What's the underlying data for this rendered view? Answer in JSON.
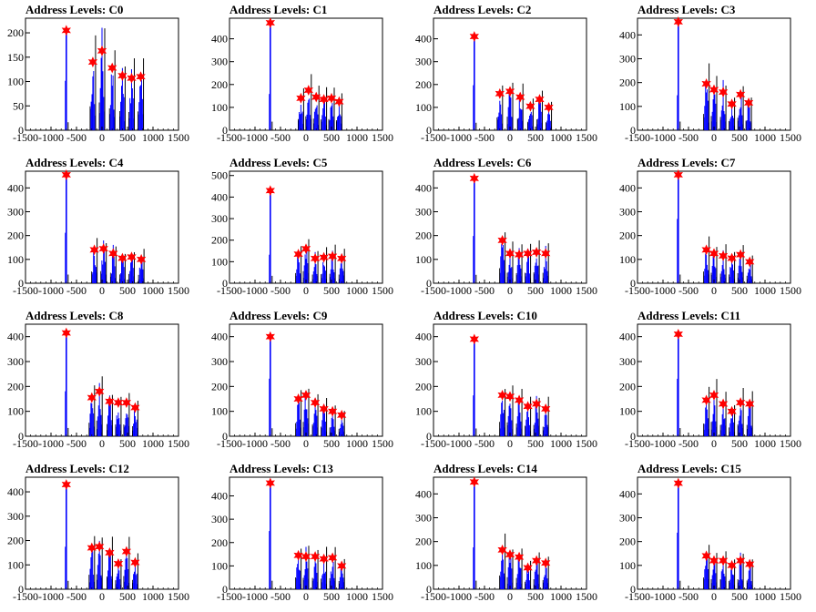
{
  "colors": {
    "histogram": "#0000ff",
    "envelope": "#000000",
    "peak_marker": "#ff0000",
    "axis": "#000000"
  },
  "chart_data": [
    {
      "type": "bar",
      "title": "Address Levels: C0",
      "x_ticks": [
        "-1500",
        "-1000",
        "-500",
        "0",
        "500",
        "1000",
        "1500"
      ],
      "xlim": [
        -1500,
        1500
      ],
      "y_ticks": [
        "0",
        "50",
        "100",
        "150",
        "200"
      ],
      "ylim": [
        0,
        230
      ],
      "peaks": [
        {
          "x": -700,
          "y": 205
        },
        {
          "x": -180,
          "y": 140
        },
        {
          "x": 0,
          "y": 163
        },
        {
          "x": 200,
          "y": 128
        },
        {
          "x": 400,
          "y": 112
        },
        {
          "x": 580,
          "y": 107
        },
        {
          "x": 760,
          "y": 110
        }
      ]
    },
    {
      "type": "bar",
      "title": "Address Levels: C1",
      "x_ticks": [
        "-1500",
        "-1000",
        "-500",
        "0",
        "500",
        "1000",
        "1500"
      ],
      "xlim": [
        -1500,
        1500
      ],
      "y_ticks": [
        "0",
        "100",
        "200",
        "300",
        "400"
      ],
      "ylim": [
        0,
        490
      ],
      "peaks": [
        {
          "x": -700,
          "y": 470
        },
        {
          "x": -100,
          "y": 140
        },
        {
          "x": 50,
          "y": 175
        },
        {
          "x": 200,
          "y": 145
        },
        {
          "x": 350,
          "y": 135
        },
        {
          "x": 500,
          "y": 140
        },
        {
          "x": 650,
          "y": 125
        }
      ]
    },
    {
      "type": "bar",
      "title": "Address Levels: C2",
      "x_ticks": [
        "-1500",
        "-1000",
        "-500",
        "0",
        "500",
        "1000",
        "1500"
      ],
      "xlim": [
        -1500,
        1500
      ],
      "y_ticks": [
        "0",
        "100",
        "200",
        "300",
        "400"
      ],
      "ylim": [
        0,
        490
      ],
      "peaks": [
        {
          "x": -700,
          "y": 410
        },
        {
          "x": -200,
          "y": 160
        },
        {
          "x": 0,
          "y": 170
        },
        {
          "x": 200,
          "y": 145
        },
        {
          "x": 400,
          "y": 105
        },
        {
          "x": 580,
          "y": 135
        },
        {
          "x": 760,
          "y": 100
        }
      ]
    },
    {
      "type": "bar",
      "title": "Address Levels: C3",
      "x_ticks": [
        "-1500",
        "-1000",
        "-500",
        "0",
        "500",
        "1000",
        "1500"
      ],
      "xlim": [
        -1500,
        1500
      ],
      "y_ticks": [
        "0",
        "100",
        "200",
        "300",
        "400"
      ],
      "ylim": [
        0,
        470
      ],
      "peaks": [
        {
          "x": -700,
          "y": 455
        },
        {
          "x": -150,
          "y": 195
        },
        {
          "x": 0,
          "y": 170
        },
        {
          "x": 180,
          "y": 160
        },
        {
          "x": 350,
          "y": 110
        },
        {
          "x": 520,
          "y": 150
        },
        {
          "x": 680,
          "y": 115
        }
      ]
    },
    {
      "type": "bar",
      "title": "Address Levels: C4",
      "x_ticks": [
        "-1500",
        "-1000",
        "-500",
        "0",
        "500",
        "1000",
        "1500"
      ],
      "xlim": [
        -1500,
        1500
      ],
      "y_ticks": [
        "0",
        "100",
        "200",
        "300",
        "400"
      ],
      "ylim": [
        0,
        470
      ],
      "peaks": [
        {
          "x": -700,
          "y": 455
        },
        {
          "x": -150,
          "y": 140
        },
        {
          "x": 30,
          "y": 145
        },
        {
          "x": 220,
          "y": 125
        },
        {
          "x": 400,
          "y": 105
        },
        {
          "x": 580,
          "y": 110
        },
        {
          "x": 770,
          "y": 100
        }
      ]
    },
    {
      "type": "bar",
      "title": "Address Levels: C5",
      "x_ticks": [
        "-1500",
        "-1000",
        "-500",
        "0",
        "500",
        "1000",
        "1500"
      ],
      "xlim": [
        -1500,
        1500
      ],
      "y_ticks": [
        "0",
        "100",
        "200",
        "300",
        "400",
        "500"
      ],
      "ylim": [
        0,
        520
      ],
      "peaks": [
        {
          "x": -700,
          "y": 430
        },
        {
          "x": -150,
          "y": 135
        },
        {
          "x": 0,
          "y": 160
        },
        {
          "x": 180,
          "y": 115
        },
        {
          "x": 350,
          "y": 120
        },
        {
          "x": 520,
          "y": 125
        },
        {
          "x": 700,
          "y": 115
        }
      ]
    },
    {
      "type": "bar",
      "title": "Address Levels: C6",
      "x_ticks": [
        "-1500",
        "-1000",
        "-500",
        "0",
        "500",
        "1000",
        "1500"
      ],
      "xlim": [
        -1500,
        1500
      ],
      "y_ticks": [
        "0",
        "100",
        "200",
        "300",
        "400"
      ],
      "ylim": [
        0,
        470
      ],
      "peaks": [
        {
          "x": -700,
          "y": 440
        },
        {
          "x": -150,
          "y": 180
        },
        {
          "x": 0,
          "y": 125
        },
        {
          "x": 180,
          "y": 120
        },
        {
          "x": 350,
          "y": 125
        },
        {
          "x": 520,
          "y": 130
        },
        {
          "x": 700,
          "y": 125
        }
      ]
    },
    {
      "type": "bar",
      "title": "Address Levels: C7",
      "x_ticks": [
        "-1500",
        "-1000",
        "-500",
        "0",
        "500",
        "1000",
        "1500"
      ],
      "xlim": [
        -1500,
        1500
      ],
      "y_ticks": [
        "0",
        "100",
        "200",
        "300",
        "400"
      ],
      "ylim": [
        0,
        470
      ],
      "peaks": [
        {
          "x": -700,
          "y": 455
        },
        {
          "x": -150,
          "y": 140
        },
        {
          "x": 0,
          "y": 125
        },
        {
          "x": 180,
          "y": 115
        },
        {
          "x": 350,
          "y": 105
        },
        {
          "x": 520,
          "y": 120
        },
        {
          "x": 700,
          "y": 90
        }
      ]
    },
    {
      "type": "bar",
      "title": "Address Levels: C8",
      "x_ticks": [
        "-1500",
        "-1000",
        "-500",
        "0",
        "500",
        "1000",
        "1500"
      ],
      "xlim": [
        -1500,
        1500
      ],
      "y_ticks": [
        "0",
        "100",
        "200",
        "300",
        "400"
      ],
      "ylim": [
        0,
        450
      ],
      "peaks": [
        {
          "x": -700,
          "y": 415
        },
        {
          "x": -200,
          "y": 155
        },
        {
          "x": -50,
          "y": 180
        },
        {
          "x": 150,
          "y": 140
        },
        {
          "x": 320,
          "y": 135
        },
        {
          "x": 480,
          "y": 135
        },
        {
          "x": 650,
          "y": 115
        }
      ]
    },
    {
      "type": "bar",
      "title": "Address Levels: C9",
      "x_ticks": [
        "-1500",
        "-1000",
        "-500",
        "0",
        "500",
        "1000",
        "1500"
      ],
      "xlim": [
        -1500,
        1500
      ],
      "y_ticks": [
        "0",
        "100",
        "200",
        "300",
        "400"
      ],
      "ylim": [
        0,
        450
      ],
      "peaks": [
        {
          "x": -700,
          "y": 400
        },
        {
          "x": -150,
          "y": 150
        },
        {
          "x": 0,
          "y": 165
        },
        {
          "x": 180,
          "y": 135
        },
        {
          "x": 350,
          "y": 110
        },
        {
          "x": 520,
          "y": 100
        },
        {
          "x": 700,
          "y": 85
        }
      ]
    },
    {
      "type": "bar",
      "title": "Address Levels: C10",
      "x_ticks": [
        "-1500",
        "-1000",
        "-500",
        "0",
        "500",
        "1000",
        "1500"
      ],
      "xlim": [
        -1500,
        1500
      ],
      "y_ticks": [
        "0",
        "100",
        "200",
        "300",
        "400"
      ],
      "ylim": [
        0,
        450
      ],
      "peaks": [
        {
          "x": -700,
          "y": 390
        },
        {
          "x": -150,
          "y": 165
        },
        {
          "x": 0,
          "y": 160
        },
        {
          "x": 180,
          "y": 145
        },
        {
          "x": 350,
          "y": 120
        },
        {
          "x": 520,
          "y": 130
        },
        {
          "x": 700,
          "y": 110
        }
      ]
    },
    {
      "type": "bar",
      "title": "Address Levels: C11",
      "x_ticks": [
        "-1500",
        "-1000",
        "-500",
        "0",
        "500",
        "1000",
        "1500"
      ],
      "xlim": [
        -1500,
        1500
      ],
      "y_ticks": [
        "0",
        "100",
        "200",
        "300",
        "400"
      ],
      "ylim": [
        0,
        450
      ],
      "peaks": [
        {
          "x": -700,
          "y": 410
        },
        {
          "x": -150,
          "y": 145
        },
        {
          "x": 0,
          "y": 165
        },
        {
          "x": 180,
          "y": 130
        },
        {
          "x": 350,
          "y": 100
        },
        {
          "x": 520,
          "y": 135
        },
        {
          "x": 700,
          "y": 130
        }
      ]
    },
    {
      "type": "bar",
      "title": "Address Levels: C12",
      "x_ticks": [
        "-1500",
        "-1000",
        "-500",
        "0",
        "500",
        "1000",
        "1500"
      ],
      "xlim": [
        -1500,
        1500
      ],
      "y_ticks": [
        "0",
        "100",
        "200",
        "300",
        "400"
      ],
      "ylim": [
        0,
        460
      ],
      "peaks": [
        {
          "x": -700,
          "y": 430
        },
        {
          "x": -200,
          "y": 170
        },
        {
          "x": -50,
          "y": 175
        },
        {
          "x": 150,
          "y": 150
        },
        {
          "x": 320,
          "y": 105
        },
        {
          "x": 480,
          "y": 155
        },
        {
          "x": 650,
          "y": 110
        }
      ]
    },
    {
      "type": "bar",
      "title": "Address Levels: C13",
      "x_ticks": [
        "-1500",
        "-1000",
        "-500",
        "0",
        "500",
        "1000",
        "1500"
      ],
      "xlim": [
        -1500,
        1500
      ],
      "y_ticks": [
        "0",
        "100",
        "200",
        "300",
        "400"
      ],
      "ylim": [
        0,
        480
      ],
      "peaks": [
        {
          "x": -700,
          "y": 455
        },
        {
          "x": -150,
          "y": 145
        },
        {
          "x": 0,
          "y": 140
        },
        {
          "x": 180,
          "y": 140
        },
        {
          "x": 350,
          "y": 130
        },
        {
          "x": 520,
          "y": 135
        },
        {
          "x": 700,
          "y": 100
        }
      ]
    },
    {
      "type": "bar",
      "title": "Address Levels: C14",
      "x_ticks": [
        "-1500",
        "-1000",
        "-500",
        "0",
        "500",
        "1000",
        "1500"
      ],
      "xlim": [
        -1500,
        1500
      ],
      "y_ticks": [
        "0",
        "100",
        "200",
        "300",
        "400"
      ],
      "ylim": [
        0,
        470
      ],
      "peaks": [
        {
          "x": -700,
          "y": 450
        },
        {
          "x": -150,
          "y": 165
        },
        {
          "x": 0,
          "y": 145
        },
        {
          "x": 180,
          "y": 135
        },
        {
          "x": 350,
          "y": 90
        },
        {
          "x": 520,
          "y": 120
        },
        {
          "x": 700,
          "y": 110
        }
      ]
    },
    {
      "type": "bar",
      "title": "Address Levels: C15",
      "x_ticks": [
        "-1500",
        "-1000",
        "-500",
        "0",
        "500",
        "1000",
        "1500"
      ],
      "xlim": [
        -1500,
        1500
      ],
      "y_ticks": [
        "0",
        "100",
        "200",
        "300",
        "400"
      ],
      "ylim": [
        0,
        470
      ],
      "peaks": [
        {
          "x": -700,
          "y": 445
        },
        {
          "x": -150,
          "y": 140
        },
        {
          "x": 0,
          "y": 120
        },
        {
          "x": 180,
          "y": 120
        },
        {
          "x": 350,
          "y": 100
        },
        {
          "x": 520,
          "y": 120
        },
        {
          "x": 700,
          "y": 105
        }
      ]
    }
  ]
}
